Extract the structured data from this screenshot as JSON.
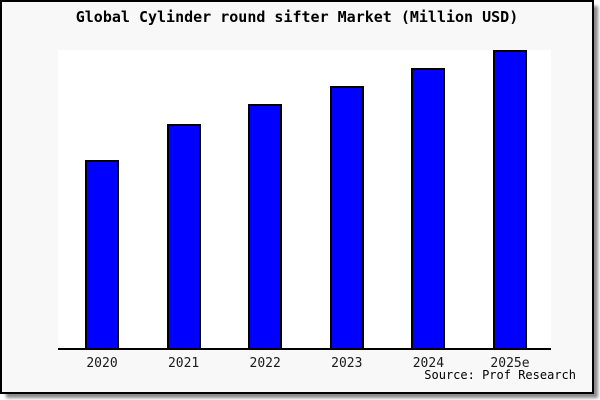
{
  "window": {
    "title": "Global Cylinder round sifter Market (Million USD)",
    "source_note": "Source: Prof Research"
  },
  "chart_data": {
    "type": "bar",
    "title": "Global Cylinder round sifter Market (Million USD)",
    "categories": [
      "2020",
      "2021",
      "2022",
      "2023",
      "2024",
      "2025e"
    ],
    "values": [
      63,
      75,
      82,
      88,
      94,
      100
    ],
    "value_note": "No y-axis labels shown in chart; values are relative units estimated as percent of the tallest (2025e) bar",
    "xlabel": "",
    "ylabel": "",
    "ylim": [
      0,
      100
    ],
    "grid": false,
    "legend": false,
    "annotations": [
      "Source: Prof Research"
    ],
    "bar_color": "#0000ff",
    "bar_edge_color": "#000000",
    "plot_background": "#ffffff",
    "figure_background": "#f8f8f8"
  }
}
